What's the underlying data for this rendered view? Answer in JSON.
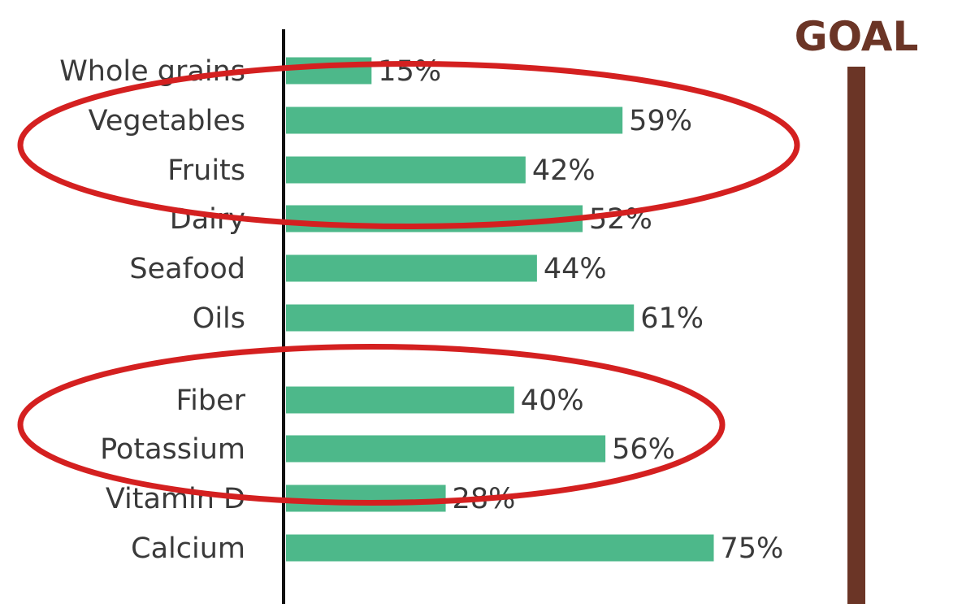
{
  "chart_data": {
    "type": "bar",
    "orientation": "horizontal",
    "categories": [
      "Whole grains",
      "Vegetables",
      "Fruits",
      "Dairy",
      "Seafood",
      "Oils",
      "Fiber",
      "Potassium",
      "Vitamin D",
      "Calcium"
    ],
    "values": [
      15,
      59,
      42,
      52,
      44,
      61,
      40,
      56,
      28,
      75
    ],
    "value_labels": [
      "15%",
      "59%",
      "42%",
      "52%",
      "44%",
      "61%",
      "40%",
      "56%",
      "28%",
      "75%"
    ],
    "xlim": [
      0,
      100
    ],
    "goal_label": "GOAL",
    "goal_value": 100,
    "highlighted_groups": [
      [
        "Vegetables",
        "Fruits",
        "Dairy"
      ],
      [
        "Fiber",
        "Potassium",
        "Vitamin D"
      ]
    ],
    "grid": false,
    "colors": {
      "bar": "#4db88a",
      "goal": "#6b3526",
      "axis": "#111111",
      "highlight": "#d42020",
      "text": "#3a3a3a"
    }
  }
}
